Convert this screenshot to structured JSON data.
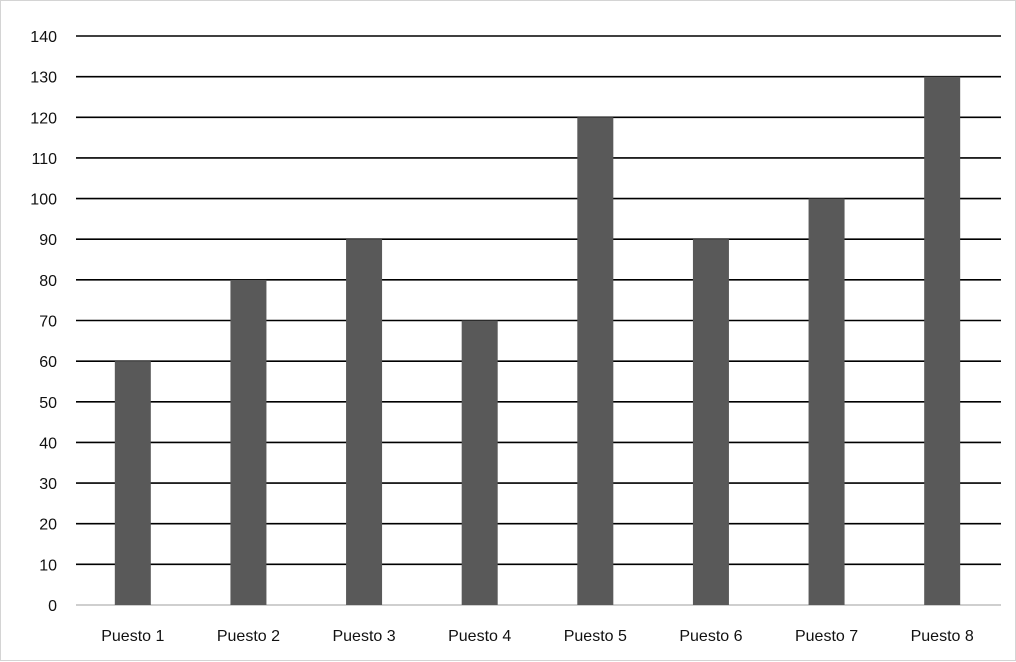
{
  "chart_data": {
    "type": "bar",
    "categories": [
      "Puesto 1",
      "Puesto 2",
      "Puesto 3",
      "Puesto 4",
      "Puesto 5",
      "Puesto 6",
      "Puesto 7",
      "Puesto 8"
    ],
    "values": [
      60,
      80,
      90,
      70,
      120,
      90,
      100,
      130
    ],
    "title": "",
    "xlabel": "",
    "ylabel": "",
    "ylim": [
      0,
      140
    ],
    "yticks": [
      0,
      10,
      20,
      30,
      40,
      50,
      60,
      70,
      80,
      90,
      100,
      110,
      120,
      130,
      140
    ],
    "grid": true,
    "legend": "none",
    "bar_color": "#595959",
    "grid_color": "#000000"
  }
}
